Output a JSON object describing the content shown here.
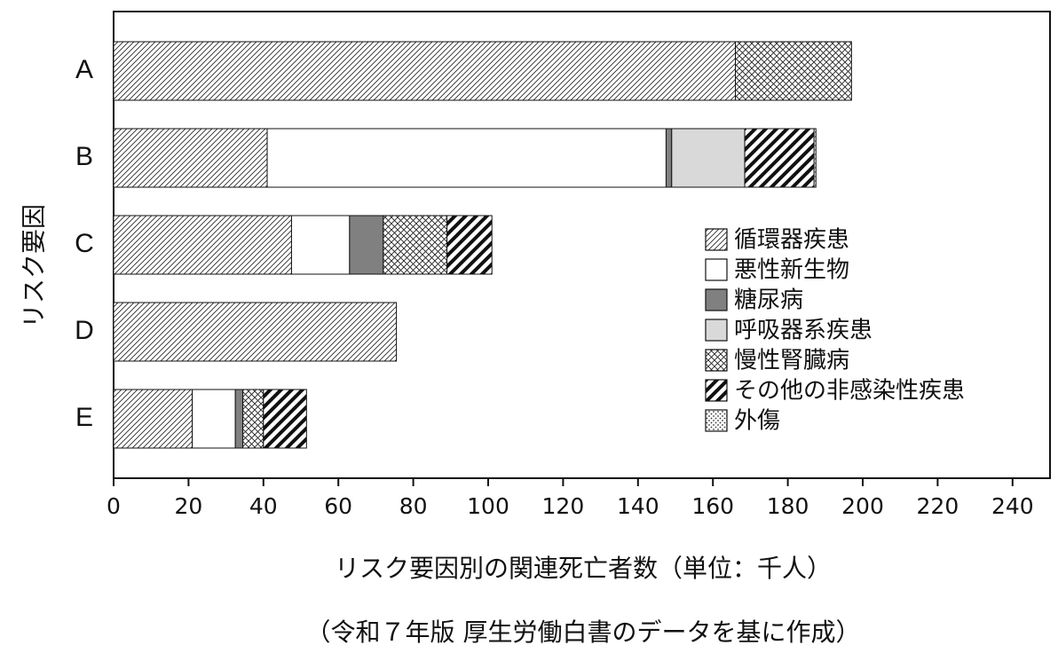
{
  "chart_data": {
    "type": "bar",
    "orientation": "horizontal",
    "stacked": true,
    "categories": [
      "A",
      "B",
      "C",
      "D",
      "E"
    ],
    "series": [
      {
        "name": "循環器疾患",
        "pattern": "hatch-thin",
        "values": [
          166,
          41,
          47.5,
          75.5,
          21
        ]
      },
      {
        "name": "悪性新生物",
        "pattern": "white",
        "values": [
          0,
          106.5,
          15.5,
          0,
          11.5
        ]
      },
      {
        "name": "糖尿病",
        "pattern": "dark-gray",
        "values": [
          0,
          1.5,
          9,
          0,
          2
        ]
      },
      {
        "name": "呼吸器系疾患",
        "pattern": "light-gray",
        "values": [
          0,
          19.5,
          0,
          0,
          0
        ]
      },
      {
        "name": "慢性腎臓病",
        "pattern": "crosshatch",
        "values": [
          31,
          0,
          17,
          0,
          5.5
        ]
      },
      {
        "name": "その他の非感染性疾患",
        "pattern": "hatch-bold",
        "values": [
          0,
          18.5,
          12,
          0,
          11.5
        ]
      },
      {
        "name": "外傷",
        "pattern": "dots",
        "values": [
          0,
          0.5,
          0,
          0,
          0
        ]
      }
    ],
    "xlabel": "リスク要因別の関連死亡者数（単位：千人）",
    "ylabel": "リスク要因",
    "xlim": [
      0,
      250
    ],
    "xticks": [
      0,
      20,
      40,
      60,
      80,
      100,
      120,
      140,
      160,
      180,
      200,
      220,
      240
    ],
    "legend_position": "right",
    "grid": false
  },
  "footer": {
    "source_note": "（令和７年版 厚生労働白書のデータを基に作成）"
  },
  "colors": {
    "ink": "#111111",
    "dark_gray": "#808080",
    "light_gray": "#d9d9d9",
    "white": "#ffffff"
  }
}
